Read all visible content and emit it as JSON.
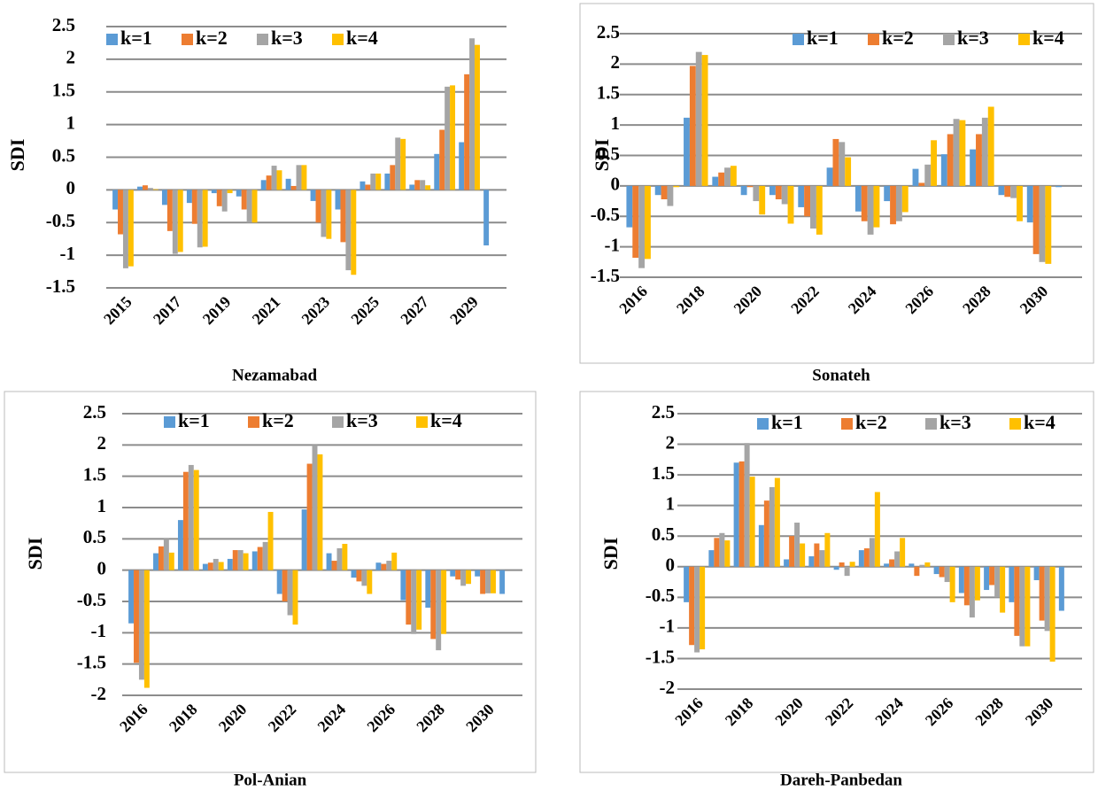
{
  "chart_data": [
    {
      "type": "bar",
      "title": "Nezamabad",
      "y_label": "SDI",
      "categories": [
        "2015",
        null,
        "2017",
        null,
        "2019",
        null,
        "2021",
        null,
        "2023",
        null,
        "2025",
        null,
        "2027",
        null,
        "2029",
        null
      ],
      "ylim": [
        -1.5,
        2.5
      ],
      "yticks": [
        -1.5,
        -1,
        -0.5,
        0,
        0.5,
        1,
        1.5,
        2,
        2.5
      ],
      "grid": true,
      "series": [
        {
          "name": "k=1",
          "color": "#5b9bd5",
          "values": [
            -0.3,
            0.05,
            -0.23,
            -0.2,
            -0.05,
            -0.1,
            0.15,
            0.17,
            -0.17,
            -0.3,
            0.13,
            0.25,
            0.08,
            0.55,
            0.73,
            -0.85
          ]
        },
        {
          "name": "k=2",
          "color": "#ed7d31",
          "values": [
            -0.68,
            0.07,
            -0.63,
            -0.52,
            -0.25,
            -0.3,
            0.22,
            0.06,
            -0.5,
            -0.8,
            0.08,
            0.38,
            0.15,
            0.92,
            1.77,
            null
          ]
        },
        {
          "name": "k=3",
          "color": "#a5a5a5",
          "values": [
            -1.2,
            0.03,
            -0.98,
            -0.88,
            -0.33,
            -0.5,
            0.37,
            0.38,
            -0.72,
            -1.23,
            0.25,
            0.8,
            0.15,
            1.58,
            2.32,
            null
          ]
        },
        {
          "name": "k=4",
          "color": "#ffc000",
          "values": [
            -1.17,
            0.01,
            -0.95,
            -0.87,
            -0.05,
            -0.5,
            0.3,
            0.38,
            -0.75,
            -1.3,
            0.25,
            0.78,
            0.07,
            1.6,
            2.22,
            null
          ]
        }
      ]
    },
    {
      "type": "bar",
      "title": "Sonateh",
      "y_label": "SDI",
      "categories": [
        "2016",
        null,
        "2018",
        null,
        "2020",
        null,
        "2022",
        null,
        "2024",
        null,
        "2026",
        null,
        "2028",
        null,
        "2030",
        null
      ],
      "ylim": [
        -1.5,
        2.5
      ],
      "yticks": [
        -1.5,
        -1,
        -0.5,
        0,
        0.5,
        1,
        1.5,
        2,
        2.5
      ],
      "grid": true,
      "series": [
        {
          "name": "k=1",
          "color": "#5b9bd5",
          "values": [
            -0.68,
            -0.15,
            1.12,
            0.15,
            -0.15,
            -0.15,
            -0.35,
            0.3,
            -0.42,
            -0.25,
            0.28,
            0.52,
            0.6,
            -0.15,
            -0.6,
            -0.02
          ]
        },
        {
          "name": "k=2",
          "color": "#ed7d31",
          "values": [
            -1.18,
            -0.22,
            1.97,
            0.22,
            -0.02,
            -0.22,
            -0.5,
            0.77,
            -0.58,
            -0.63,
            0.05,
            0.85,
            0.85,
            -0.18,
            -1.12,
            null
          ]
        },
        {
          "name": "k=3",
          "color": "#a5a5a5",
          "values": [
            -1.35,
            -0.33,
            2.2,
            0.3,
            -0.25,
            -0.3,
            -0.7,
            0.72,
            -0.8,
            -0.58,
            0.35,
            1.1,
            1.12,
            -0.2,
            -1.25,
            null
          ]
        },
        {
          "name": "k=4",
          "color": "#ffc000",
          "values": [
            -1.2,
            -0.02,
            2.15,
            0.33,
            -0.47,
            -0.62,
            -0.8,
            0.47,
            -0.68,
            -0.43,
            0.75,
            1.08,
            1.3,
            -0.58,
            -1.28,
            null
          ]
        }
      ]
    },
    {
      "type": "bar",
      "title": "Pol-Anian",
      "y_label": "SDI",
      "categories": [
        "2016",
        null,
        "2018",
        null,
        "2020",
        null,
        "2022",
        null,
        "2024",
        null,
        "2026",
        null,
        "2028",
        null,
        "2030",
        null
      ],
      "ylim": [
        -2,
        2.5
      ],
      "yticks": [
        -2,
        -1.5,
        -1,
        -0.5,
        0,
        0.5,
        1,
        1.5,
        2,
        2.5
      ],
      "grid": true,
      "series": [
        {
          "name": "k=1",
          "color": "#5b9bd5",
          "values": [
            -0.85,
            0.27,
            0.8,
            0.1,
            0.18,
            0.3,
            -0.38,
            0.97,
            0.27,
            -0.12,
            0.12,
            -0.48,
            -0.6,
            -0.1,
            -0.1,
            -0.38
          ]
        },
        {
          "name": "k=2",
          "color": "#ed7d31",
          "values": [
            -1.48,
            0.38,
            1.57,
            0.12,
            0.32,
            0.37,
            -0.5,
            1.7,
            0.15,
            -0.18,
            0.1,
            -0.87,
            -1.1,
            -0.15,
            -0.38,
            null
          ]
        },
        {
          "name": "k=3",
          "color": "#a5a5a5",
          "values": [
            -1.75,
            0.5,
            1.68,
            0.18,
            0.32,
            0.45,
            -0.72,
            2.0,
            0.35,
            -0.25,
            0.15,
            -1.02,
            -1.28,
            -0.25,
            -0.37,
            null
          ]
        },
        {
          "name": "k=4",
          "color": "#ffc000",
          "values": [
            -1.88,
            0.28,
            1.6,
            0.13,
            0.27,
            0.93,
            -0.87,
            1.85,
            0.42,
            -0.38,
            0.28,
            -0.95,
            -1.02,
            -0.22,
            -0.37,
            null
          ]
        }
      ]
    },
    {
      "type": "bar",
      "title": "Dareh-Panbedan",
      "y_label": "SDI",
      "categories": [
        "2016",
        null,
        "2018",
        null,
        "2020",
        null,
        "2022",
        null,
        "2024",
        null,
        "2026",
        null,
        "2028",
        null,
        "2030",
        null
      ],
      "ylim": [
        -2,
        2.5
      ],
      "yticks": [
        -2,
        -1.5,
        -1,
        -0.5,
        0,
        0.5,
        1,
        1.5,
        2,
        2.5
      ],
      "grid": true,
      "series": [
        {
          "name": "k=1",
          "color": "#5b9bd5",
          "values": [
            -0.58,
            0.27,
            1.7,
            0.68,
            0.12,
            0.17,
            -0.05,
            0.27,
            0.05,
            0.05,
            -0.12,
            -0.43,
            -0.38,
            -0.58,
            -0.22,
            -0.72
          ]
        },
        {
          "name": "k=2",
          "color": "#ed7d31",
          "values": [
            -1.28,
            0.47,
            1.72,
            1.08,
            0.5,
            0.38,
            0.07,
            0.3,
            0.12,
            -0.15,
            -0.17,
            -0.63,
            -0.3,
            -1.13,
            -0.88,
            null
          ]
        },
        {
          "name": "k=3",
          "color": "#a5a5a5",
          "values": [
            -1.4,
            0.55,
            2.02,
            1.3,
            0.72,
            0.27,
            -0.15,
            0.47,
            0.25,
            0.03,
            -0.25,
            -0.83,
            -0.5,
            -1.3,
            -1.05,
            null
          ]
        },
        {
          "name": "k=4",
          "color": "#ffc000",
          "values": [
            -1.35,
            0.43,
            1.47,
            1.45,
            0.38,
            0.55,
            0.08,
            1.22,
            0.47,
            0.07,
            -0.58,
            -0.55,
            -0.75,
            -1.3,
            -1.55,
            null
          ]
        }
      ]
    }
  ]
}
